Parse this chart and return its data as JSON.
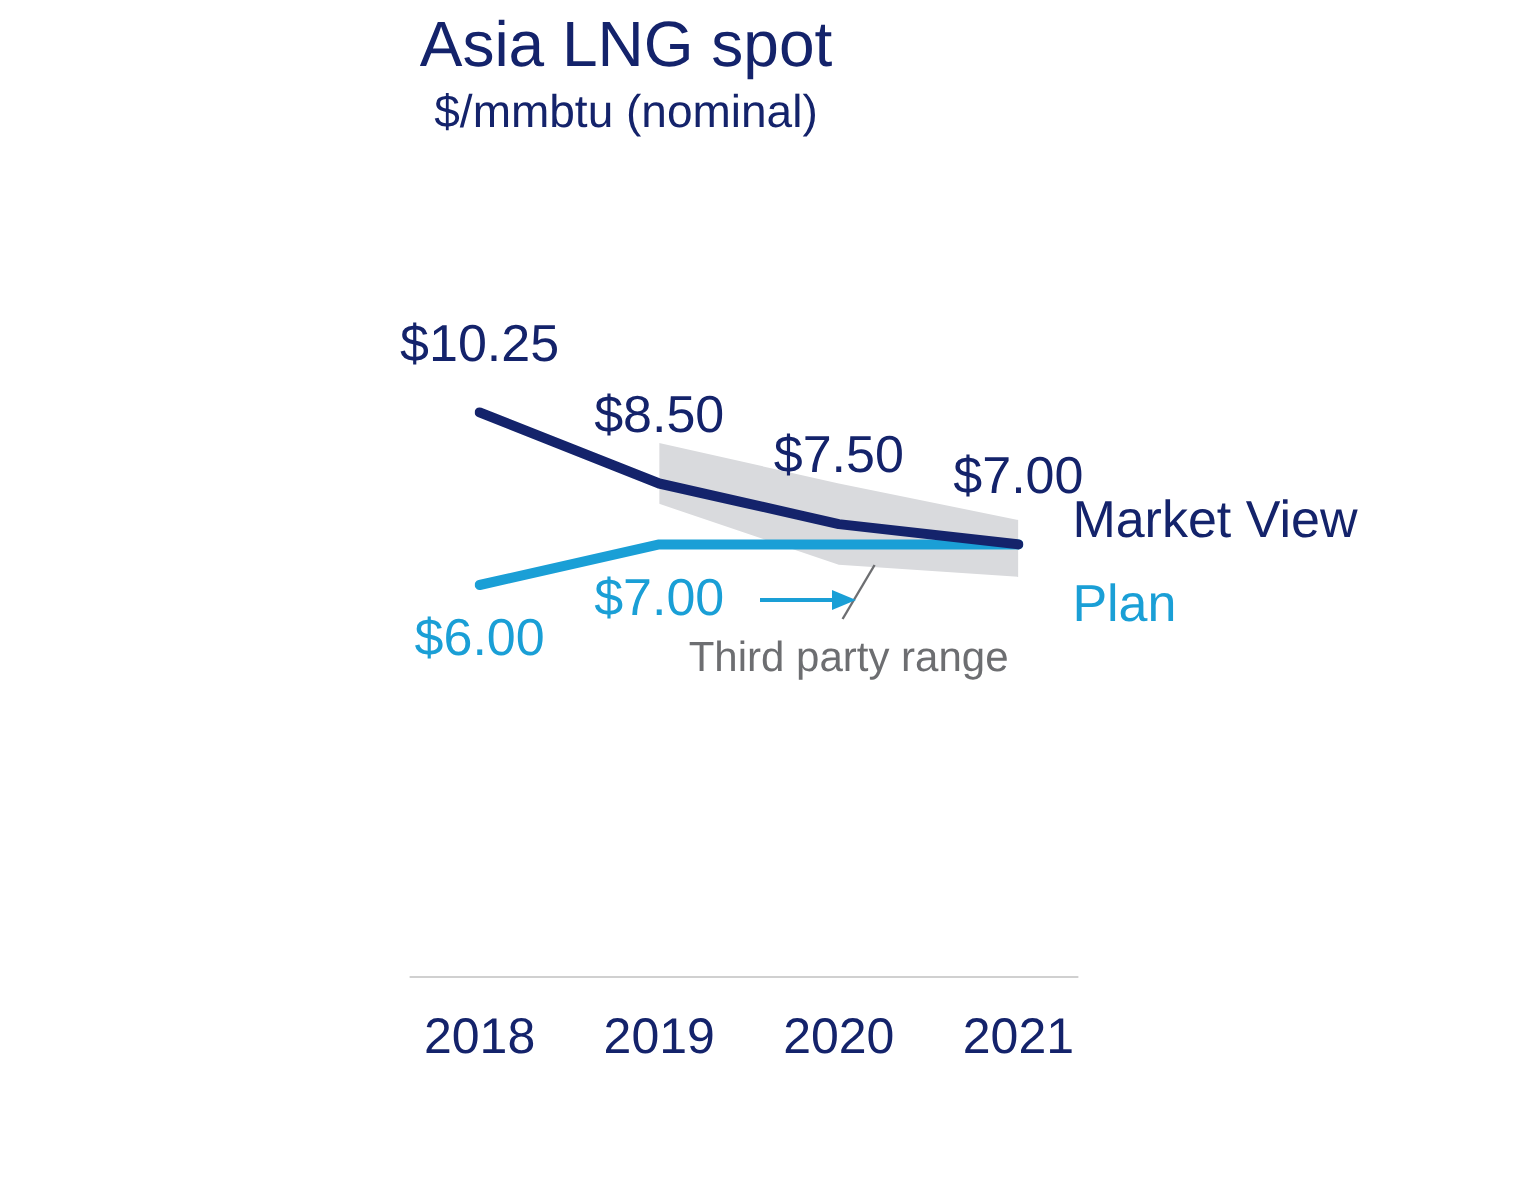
{
  "chart_data": {
    "type": "line",
    "title": "Asia LNG spot",
    "subtitle": "$/mmbtu (nominal)",
    "categories": [
      "2018",
      "2019",
      "2020",
      "2021"
    ],
    "series": [
      {
        "name": "Market View",
        "color": "#14236b",
        "values": [
          10.25,
          8.5,
          7.5,
          7.0
        ],
        "value_labels": [
          "$10.25",
          "$8.50",
          "$7.50",
          "$7.00"
        ],
        "lower": [
          null,
          8.0,
          6.5,
          6.2
        ],
        "upper": [
          null,
          9.5,
          8.5,
          7.6
        ]
      },
      {
        "name": "Plan",
        "color": "#1a9fd6",
        "values": [
          6.0,
          7.0,
          7.0,
          7.0
        ],
        "value_labels": [
          "$6.00",
          "$7.00",
          null,
          null
        ]
      }
    ],
    "annotations": [
      "Third party range"
    ],
    "legend": false,
    "grid": false,
    "marker": "none",
    "line_style": "solid"
  }
}
